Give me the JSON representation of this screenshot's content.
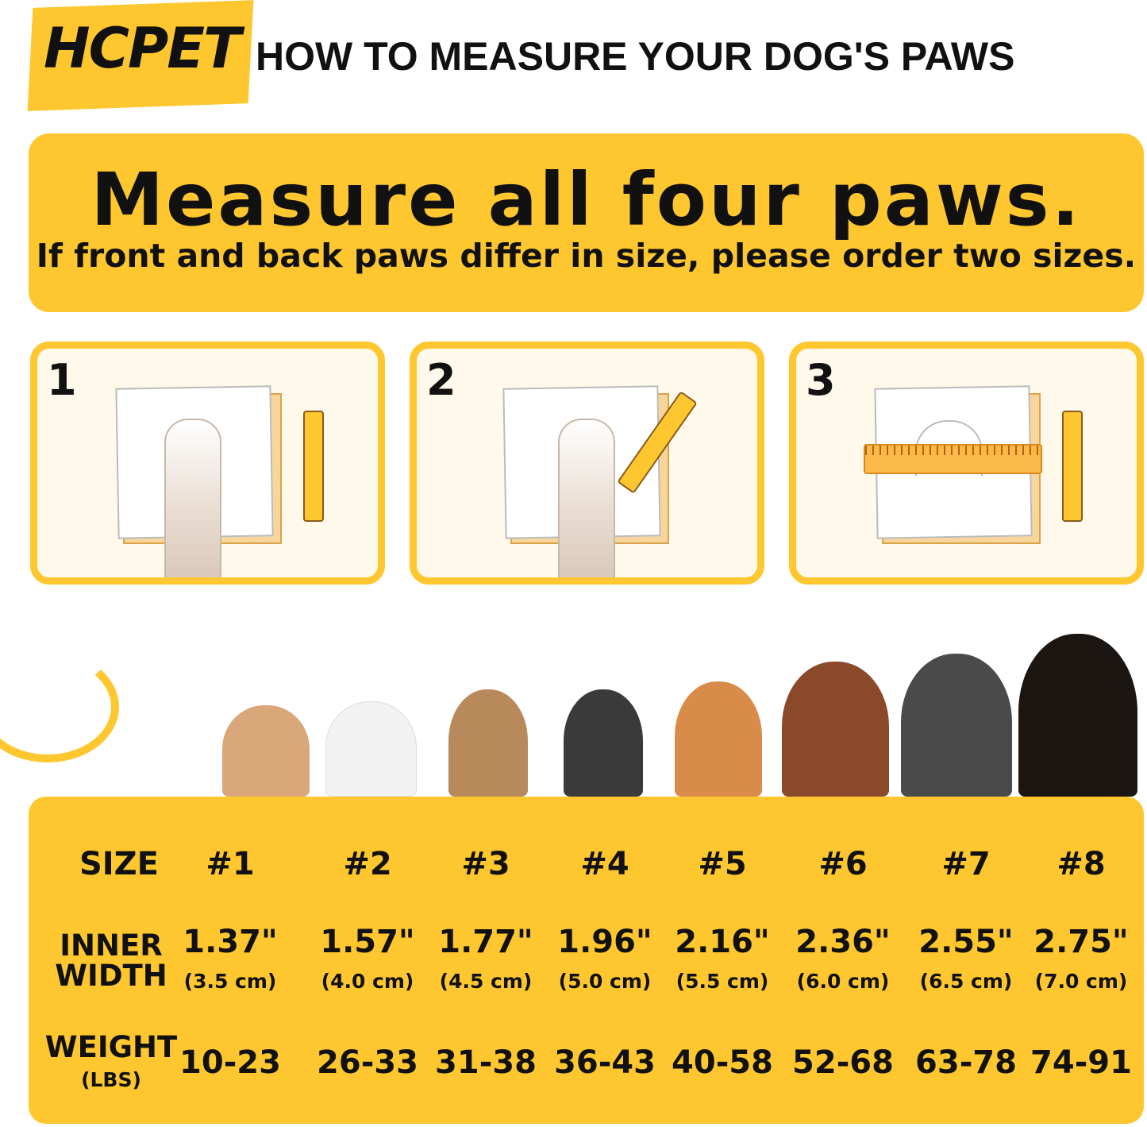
{
  "brand": "HCPET",
  "title": "HOW TO MEASURE YOUR DOG'S PAWS",
  "banner": {
    "headline": "Measure all four paws.",
    "subline": "If front and back paws differ in size, please order two sizes."
  },
  "steps": [
    {
      "number": "1"
    },
    {
      "number": "2"
    },
    {
      "number": "3"
    }
  ],
  "colors": {
    "accent": "#FEC72F",
    "panel_bg": "#FEF9EA"
  },
  "table": {
    "size_label": "SIZE",
    "width_label_1": "INNER",
    "width_label_2": "WIDTH",
    "weight_label_1": "WEIGHT",
    "weight_label_2": "(LBS)",
    "columns": [
      {
        "size": "#1",
        "inch": "1.37\"",
        "cm": "(3.5 cm)",
        "weight": "10-23"
      },
      {
        "size": "#2",
        "inch": "1.57\"",
        "cm": "(4.0 cm)",
        "weight": "26-33"
      },
      {
        "size": "#3",
        "inch": "1.77\"",
        "cm": "(4.5 cm)",
        "weight": "31-38"
      },
      {
        "size": "#4",
        "inch": "1.96\"",
        "cm": "(5.0 cm)",
        "weight": "36-43"
      },
      {
        "size": "#5",
        "inch": "2.16\"",
        "cm": "(5.5 cm)",
        "weight": "40-58"
      },
      {
        "size": "#6",
        "inch": "2.36\"",
        "cm": "(6.0 cm)",
        "weight": "52-68"
      },
      {
        "size": "#7",
        "inch": "2.55\"",
        "cm": "(6.5 cm)",
        "weight": "63-78"
      },
      {
        "size": "#8",
        "inch": "2.75\"",
        "cm": "(7.0 cm)",
        "weight": "74-91"
      }
    ]
  }
}
